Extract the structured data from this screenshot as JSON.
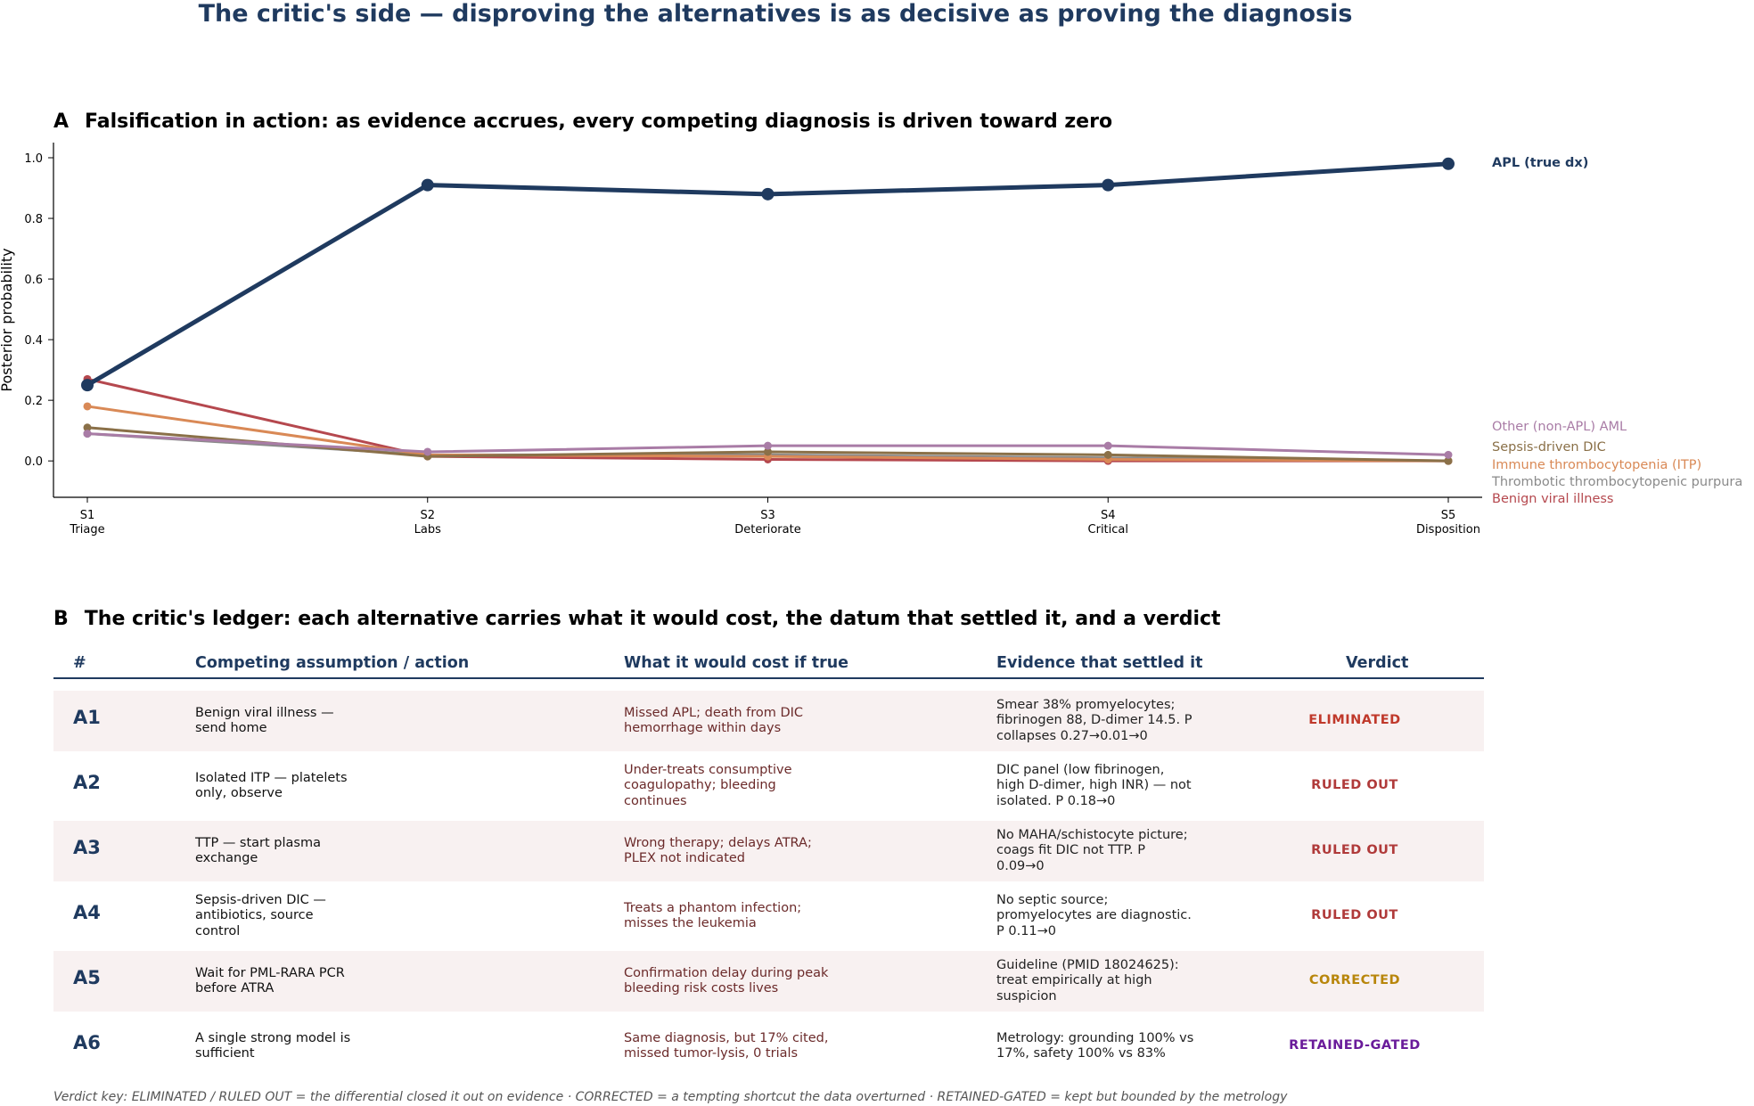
{
  "title": "The critic's side — disproving the alternatives is as decisive as proving the diagnosis",
  "panel_a": {
    "letter": "A",
    "title": "Falsification in action: as evidence accrues, every competing diagnosis is driven toward zero"
  },
  "panel_b": {
    "letter": "B",
    "title": "The critic's ledger: each alternative carries what it would cost, the datum that settled it, and a verdict"
  },
  "chart_data": {
    "type": "line",
    "ylabel": "Posterior probability",
    "ylim": [
      -0.12,
      1.05
    ],
    "yticks": [
      "0.0",
      "0.2",
      "0.4",
      "0.6",
      "0.8",
      "1.0"
    ],
    "categories": [
      "S1\nTriage",
      "S2\nLabs",
      "S3\nDeteriorate",
      "S4\nCritical",
      "S5\nDisposition"
    ],
    "series": [
      {
        "name": "Benign viral illness",
        "color": "#b5484e",
        "values": [
          0.27,
          0.015,
          0.005,
          0.0,
          0.0
        ]
      },
      {
        "name": "Thrombotic thrombocytopenic purpura",
        "color": "#8a8a8a",
        "values": [
          0.09,
          0.02,
          0.02,
          0.01,
          0.0
        ]
      },
      {
        "name": "Immune thrombocytopenia (ITP)",
        "color": "#d98956",
        "values": [
          0.18,
          0.02,
          0.015,
          0.005,
          0.0
        ]
      },
      {
        "name": "Sepsis-driven DIC",
        "color": "#8a7048",
        "values": [
          0.11,
          0.015,
          0.03,
          0.02,
          0.0
        ]
      },
      {
        "name": "Other (non-APL) AML",
        "color": "#a97ca6",
        "values": [
          0.09,
          0.03,
          0.05,
          0.05,
          0.02
        ]
      },
      {
        "name": "APL (true dx)",
        "color": "#1f3a5f",
        "values": [
          0.25,
          0.91,
          0.88,
          0.91,
          0.98
        ],
        "bold": true
      }
    ],
    "grid": false,
    "legend": "right"
  },
  "table": {
    "headers": [
      "#",
      "Competing assumption / action",
      "What it would cost if true",
      "Evidence that settled it",
      "Verdict"
    ],
    "rows": [
      {
        "id": "A1",
        "assumption": [
          "Benign viral illness —",
          "send home"
        ],
        "cost": [
          "Missed APL; death from DIC",
          "hemorrhage within days"
        ],
        "evidence": [
          "Smear 38% promyelocytes;",
          "fibrinogen 88, D-dimer 14.5. P",
          "collapses 0.27→0.01→0"
        ],
        "verdict": "ELIMINATED",
        "verdict_color": "#c0392b"
      },
      {
        "id": "A2",
        "assumption": [
          "Isolated ITP — platelets",
          "only, observe"
        ],
        "cost": [
          "Under-treats consumptive",
          "coagulopathy; bleeding",
          "continues"
        ],
        "evidence": [
          "DIC panel (low fibrinogen,",
          "high D-dimer, high INR) — not",
          "isolated. P 0.18→0"
        ],
        "verdict": "RULED OUT",
        "verdict_color": "#b03a3a"
      },
      {
        "id": "A3",
        "assumption": [
          "TTP — start plasma",
          "exchange"
        ],
        "cost": [
          "Wrong therapy; delays ATRA;",
          "PLEX not indicated"
        ],
        "evidence": [
          "No MAHA/schistocyte picture;",
          "coags fit DIC not TTP. P",
          "0.09→0"
        ],
        "verdict": "RULED OUT",
        "verdict_color": "#b03a3a"
      },
      {
        "id": "A4",
        "assumption": [
          "Sepsis-driven DIC —",
          "antibiotics, source",
          "control"
        ],
        "cost": [
          "Treats a phantom infection;",
          "misses the leukemia"
        ],
        "evidence": [
          "No septic source;",
          "promyelocytes are diagnostic.",
          "P 0.11→0"
        ],
        "verdict": "RULED OUT",
        "verdict_color": "#b03a3a"
      },
      {
        "id": "A5",
        "assumption": [
          "Wait for PML-RARA PCR",
          "before ATRA"
        ],
        "cost": [
          "Confirmation delay during peak",
          "bleeding risk costs lives"
        ],
        "evidence": [
          "Guideline (PMID 18024625):",
          "treat empirically at high",
          "suspicion"
        ],
        "verdict": "CORRECTED",
        "verdict_color": "#b8860b"
      },
      {
        "id": "A6",
        "assumption": [
          "A single strong model is",
          "sufficient"
        ],
        "cost": [
          "Same diagnosis, but 17% cited,",
          "missed tumor-lysis, 0 trials"
        ],
        "evidence": [
          "Metrology: grounding 100% vs",
          "17%, safety 100% vs 83%"
        ],
        "verdict": "RETAINED-GATED",
        "verdict_color": "#6a1b9a"
      }
    ]
  },
  "verdict_key": "Verdict key:  ELIMINATED / RULED OUT = the differential closed it out on evidence   ·   CORRECTED = a tempting shortcut the data overturned   ·   RETAINED-GATED = kept but bounded by the metrology"
}
